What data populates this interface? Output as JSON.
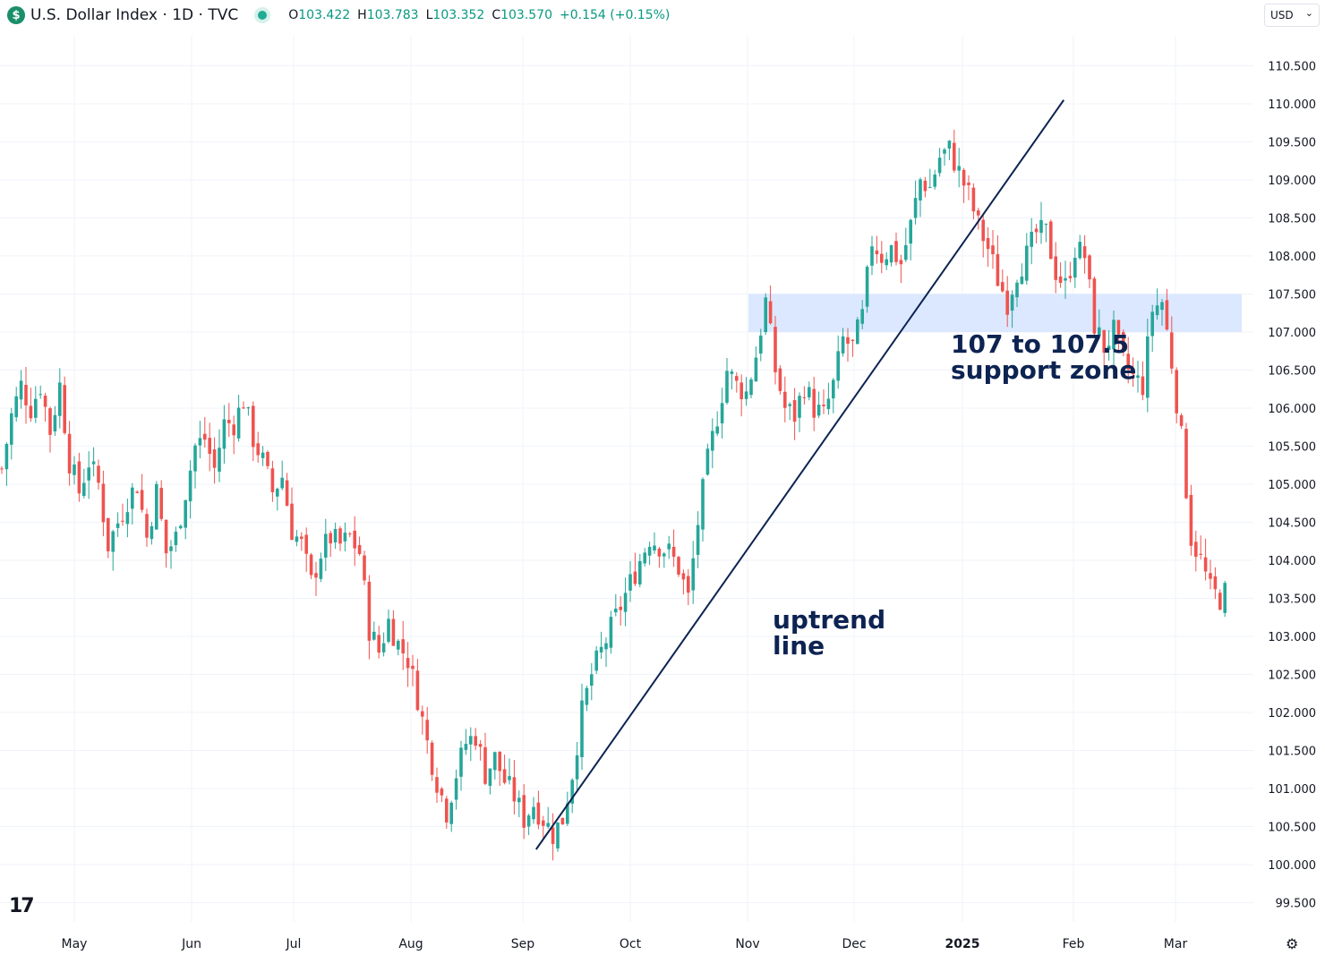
{
  "header": {
    "symbol_icon": "$",
    "title": "U.S. Dollar Index · 1D · TVC",
    "ohlc": [
      {
        "k": "O",
        "v": "103.422"
      },
      {
        "k": "H",
        "v": "103.783"
      },
      {
        "k": "L",
        "v": "103.352"
      },
      {
        "k": "C",
        "v": "103.570"
      }
    ],
    "change": "+0.154 (+0.15%)",
    "currency": "USD"
  },
  "colors": {
    "up": "#26a69a",
    "down": "#ef5350",
    "zone": "#d6e4ff",
    "annotation": "#0d2352",
    "grid": "#f0f3fa"
  },
  "chart_data": {
    "type": "candlestick",
    "ylim": [
      99.2,
      110.9
    ],
    "y_ticks": [
      "99.500",
      "100.000",
      "100.500",
      "101.000",
      "101.500",
      "102.000",
      "102.500",
      "103.000",
      "103.500",
      "104.000",
      "104.500",
      "105.000",
      "105.500",
      "106.000",
      "106.500",
      "107.000",
      "107.500",
      "108.000",
      "108.500",
      "109.000",
      "109.500",
      "110.000",
      "110.500"
    ],
    "x_labels": [
      {
        "label": "May",
        "bold": false
      },
      {
        "label": "Jun",
        "bold": false
      },
      {
        "label": "Jul",
        "bold": false
      },
      {
        "label": "Aug",
        "bold": false
      },
      {
        "label": "Sep",
        "bold": false
      },
      {
        "label": "Oct",
        "bold": false
      },
      {
        "label": "Nov",
        "bold": false
      },
      {
        "label": "Dec",
        "bold": false
      },
      {
        "label": "2025",
        "bold": true
      },
      {
        "label": "Feb",
        "bold": false
      },
      {
        "label": "Mar",
        "bold": false
      }
    ],
    "close_path": [
      [
        0,
        105.2
      ],
      [
        2,
        105.9
      ],
      [
        4,
        106.3
      ],
      [
        6,
        106.0
      ],
      [
        8,
        106.3
      ],
      [
        10,
        105.7
      ],
      [
        12,
        106.3
      ],
      [
        14,
        105.3
      ],
      [
        16,
        104.9
      ],
      [
        18,
        105.3
      ],
      [
        20,
        105.0
      ],
      [
        22,
        104.2
      ],
      [
        24,
        104.5
      ],
      [
        26,
        104.8
      ],
      [
        28,
        105.0
      ],
      [
        30,
        104.3
      ],
      [
        32,
        104.9
      ],
      [
        34,
        104.1
      ],
      [
        36,
        104.3
      ],
      [
        38,
        104.9
      ],
      [
        40,
        105.5
      ],
      [
        42,
        105.6
      ],
      [
        44,
        105.2
      ],
      [
        46,
        105.8
      ],
      [
        48,
        105.8
      ],
      [
        50,
        106.1
      ],
      [
        52,
        105.6
      ],
      [
        54,
        105.3
      ],
      [
        56,
        104.9
      ],
      [
        58,
        105.1
      ],
      [
        60,
        104.4
      ],
      [
        62,
        104.2
      ],
      [
        64,
        103.7
      ],
      [
        66,
        104.1
      ],
      [
        68,
        104.3
      ],
      [
        70,
        104.2
      ],
      [
        72,
        104.3
      ],
      [
        74,
        104.1
      ],
      [
        76,
        103.1
      ],
      [
        78,
        102.8
      ],
      [
        80,
        103.2
      ],
      [
        82,
        102.9
      ],
      [
        84,
        102.7
      ],
      [
        86,
        102.2
      ],
      [
        88,
        101.6
      ],
      [
        90,
        101.1
      ],
      [
        92,
        100.7
      ],
      [
        94,
        101.2
      ],
      [
        96,
        101.6
      ],
      [
        98,
        101.7
      ],
      [
        100,
        101.2
      ],
      [
        102,
        101.4
      ],
      [
        104,
        101.1
      ],
      [
        106,
        100.9
      ],
      [
        108,
        100.6
      ],
      [
        110,
        100.8
      ],
      [
        112,
        100.6
      ],
      [
        114,
        100.4
      ],
      [
        116,
        100.6
      ],
      [
        118,
        101.2
      ],
      [
        120,
        102.0
      ],
      [
        122,
        102.5
      ],
      [
        124,
        102.8
      ],
      [
        126,
        103.1
      ],
      [
        128,
        103.4
      ],
      [
        130,
        103.7
      ],
      [
        132,
        104.0
      ],
      [
        134,
        104.3
      ],
      [
        136,
        104.2
      ],
      [
        138,
        104.1
      ],
      [
        140,
        103.9
      ],
      [
        142,
        103.5
      ],
      [
        144,
        104.5
      ],
      [
        146,
        105.3
      ],
      [
        148,
        105.9
      ],
      [
        150,
        106.5
      ],
      [
        152,
        106.3
      ],
      [
        154,
        106.2
      ],
      [
        156,
        106.7
      ],
      [
        158,
        107.4
      ],
      [
        160,
        106.5
      ],
      [
        162,
        106.0
      ],
      [
        164,
        105.9
      ],
      [
        166,
        106.3
      ],
      [
        168,
        106.0
      ],
      [
        170,
        105.9
      ],
      [
        172,
        106.3
      ],
      [
        174,
        106.9
      ],
      [
        176,
        106.8
      ],
      [
        178,
        107.2
      ],
      [
        180,
        108.2
      ],
      [
        182,
        108.0
      ],
      [
        184,
        108.1
      ],
      [
        186,
        107.9
      ],
      [
        188,
        108.4
      ],
      [
        190,
        109.0
      ],
      [
        192,
        108.9
      ],
      [
        194,
        109.3
      ],
      [
        196,
        109.4
      ],
      [
        198,
        109.1
      ],
      [
        200,
        108.8
      ],
      [
        202,
        108.4
      ],
      [
        204,
        108.1
      ],
      [
        206,
        107.7
      ],
      [
        208,
        107.4
      ],
      [
        210,
        107.8
      ],
      [
        212,
        108.0
      ],
      [
        214,
        108.3
      ],
      [
        216,
        108.3
      ],
      [
        218,
        107.8
      ],
      [
        220,
        107.6
      ],
      [
        222,
        108.1
      ],
      [
        224,
        108.0
      ],
      [
        226,
        107.1
      ],
      [
        228,
        106.8
      ],
      [
        230,
        107.0
      ],
      [
        232,
        106.6
      ],
      [
        234,
        106.4
      ],
      [
        236,
        106.3
      ],
      [
        238,
        107.3
      ],
      [
        240,
        107.4
      ],
      [
        242,
        106.6
      ],
      [
        244,
        105.6
      ],
      [
        246,
        104.3
      ],
      [
        248,
        104.0
      ],
      [
        250,
        103.6
      ],
      [
        252,
        103.5
      ],
      [
        253,
        103.57
      ]
    ],
    "annotations": [
      {
        "id": "zone",
        "text": "107 to 107.5 support zone",
        "lines": [
          "107 to 107.5",
          "support zone"
        ],
        "y_low": 107.0,
        "y_high": 107.5
      },
      {
        "id": "trend",
        "text": "uptrend line",
        "lines": [
          "uptrend",
          "line"
        ],
        "from": [
          112,
          100.2
        ],
        "to": [
          218,
          110.05
        ]
      }
    ]
  }
}
